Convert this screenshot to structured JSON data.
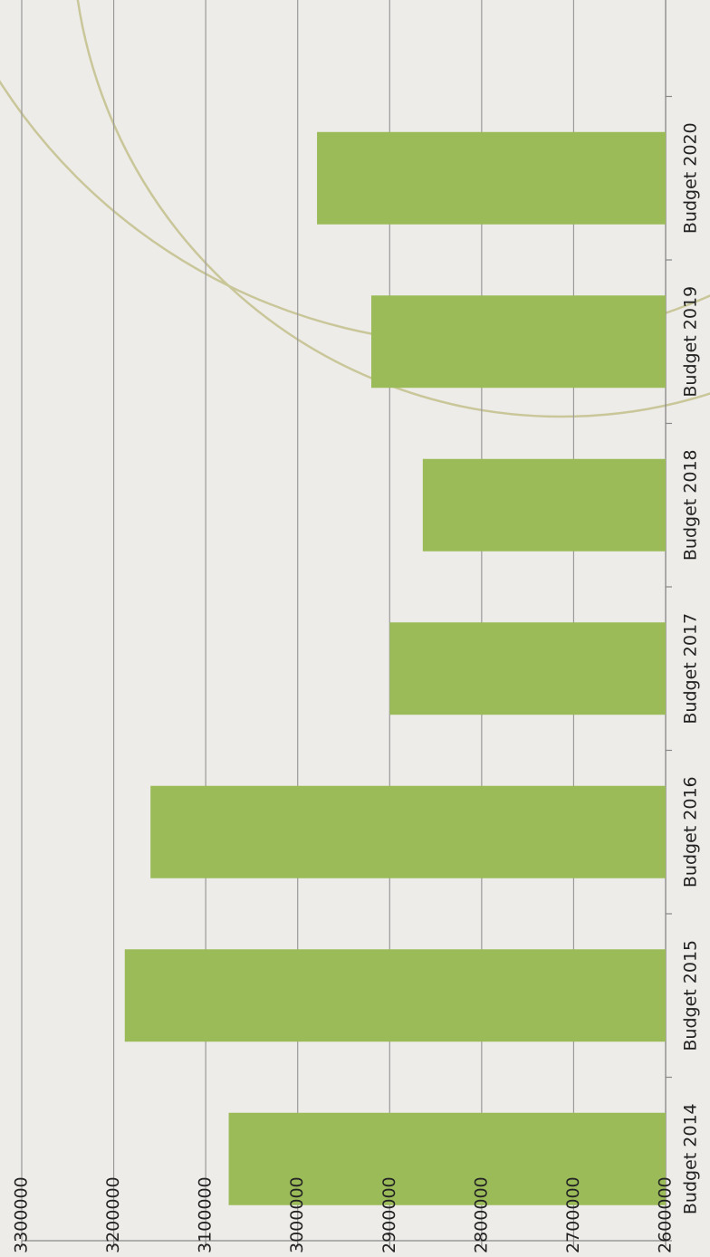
{
  "chart_data": {
    "type": "bar",
    "orientation": "horizontal",
    "categories": [
      "Budget 2014",
      "Budget 2015",
      "Budget 2016",
      "Budget 2017",
      "Budget 2018",
      "Budget 2019",
      "Budget 2020"
    ],
    "values": [
      3075000,
      3188000,
      3160000,
      2900000,
      2864000,
      2920000,
      2979000
    ],
    "color": "#9bbb59",
    "xlim": [
      2600000,
      3300000
    ],
    "xticks": [
      2600000,
      2700000,
      2800000,
      2900000,
      3000000,
      3100000,
      3200000,
      3300000
    ],
    "grid": true
  }
}
